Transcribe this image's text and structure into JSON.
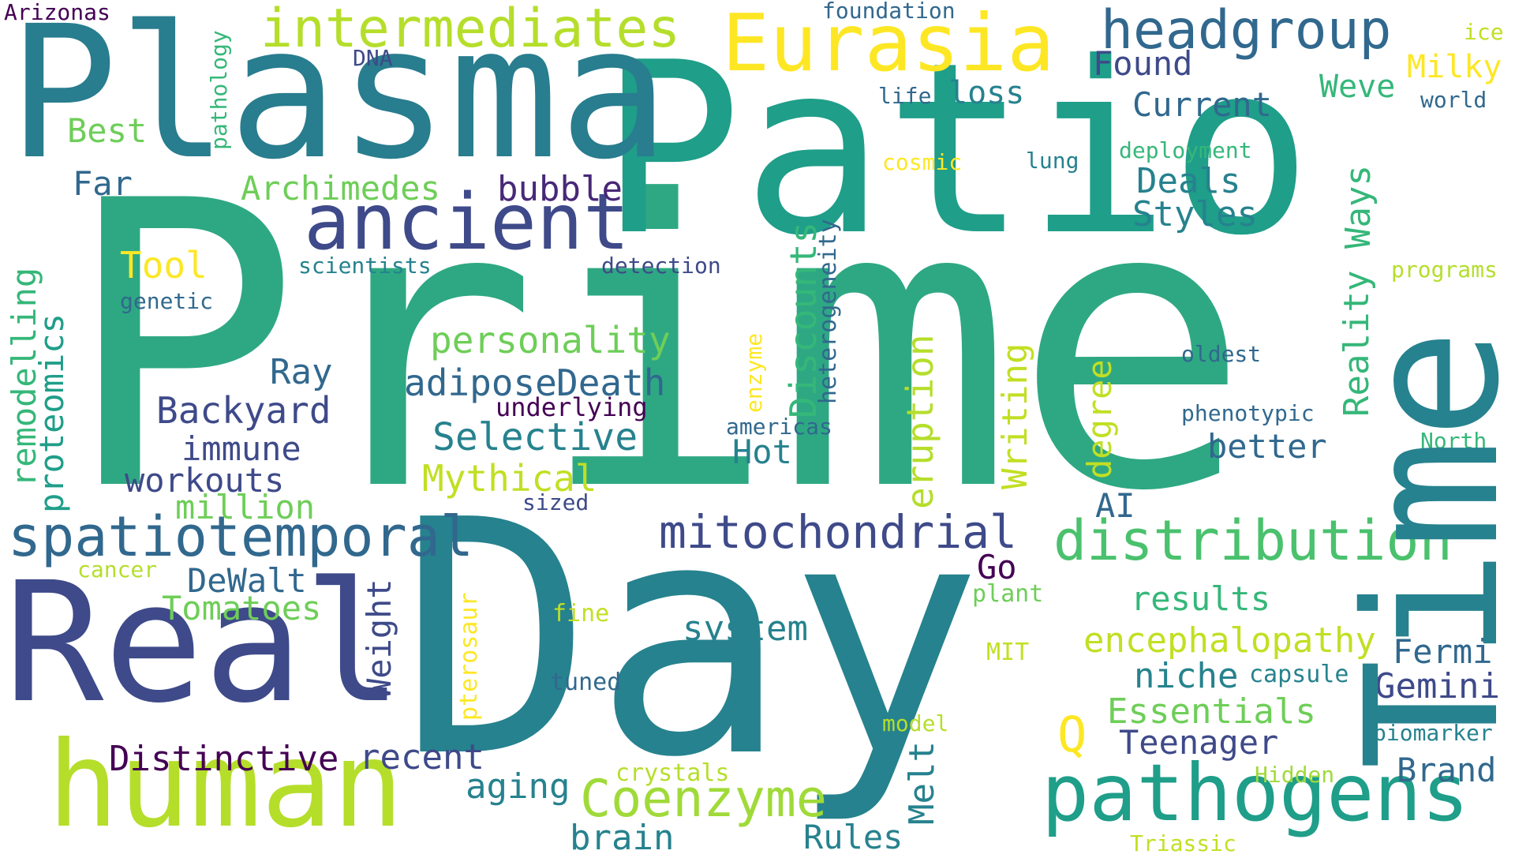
{
  "palette": {
    "dark_purple": "#440154",
    "indigo": "#3e4a89",
    "blue": "#31688e",
    "teal": "#26828e",
    "teal_green": "#1f9e89",
    "green": "#35b779",
    "light_green": "#6ece58",
    "yellow_green": "#b5de2b",
    "yellow": "#fde725"
  },
  "words": [
    {
      "text": "Prime",
      "color": "#2ea883",
      "orientation": "horizontal"
    },
    {
      "text": "Day",
      "color": "#26828e",
      "orientation": "horizontal"
    },
    {
      "text": "Patio",
      "color": "#1f9e89",
      "orientation": "horizontal"
    },
    {
      "text": "Plasma",
      "color": "#287d8e",
      "orientation": "horizontal"
    },
    {
      "text": "Real",
      "color": "#3e4a89",
      "orientation": "horizontal"
    },
    {
      "text": "Time",
      "color": "#26828e",
      "orientation": "vertical"
    },
    {
      "text": "human",
      "color": "#b5de2b",
      "orientation": "horizontal"
    },
    {
      "text": "Eurasia",
      "color": "#fde725",
      "orientation": "horizontal"
    },
    {
      "text": "ancient",
      "color": "#3e4a89",
      "orientation": "horizontal"
    },
    {
      "text": "pathogens",
      "color": "#1f9e89",
      "orientation": "horizontal"
    },
    {
      "text": "intermediates",
      "color": "#b5de2b",
      "orientation": "horizontal"
    },
    {
      "text": "headgroup",
      "color": "#31688e",
      "orientation": "horizontal"
    },
    {
      "text": "spatiotemporal",
      "color": "#31688e",
      "orientation": "horizontal"
    },
    {
      "text": "distribution",
      "color": "#4ac16d",
      "orientation": "horizontal"
    },
    {
      "text": "mitochondrial",
      "color": "#3e4a89",
      "orientation": "horizontal"
    },
    {
      "text": "Coenzyme",
      "color": "#a0da39",
      "orientation": "horizontal"
    },
    {
      "text": "bubble",
      "color": "#482878",
      "orientation": "horizontal"
    },
    {
      "text": "Archimedes",
      "color": "#6ece58",
      "orientation": "horizontal"
    },
    {
      "text": "personality",
      "color": "#6ece58",
      "orientation": "horizontal"
    },
    {
      "text": "adipose",
      "color": "#31688e",
      "orientation": "horizontal"
    },
    {
      "text": "Death",
      "color": "#31688e",
      "orientation": "horizontal"
    },
    {
      "text": "Selective",
      "color": "#26828e",
      "orientation": "horizontal"
    },
    {
      "text": "Mythical",
      "color": "#c2df23",
      "orientation": "horizontal"
    },
    {
      "text": "Backyard",
      "color": "#3e4a89",
      "orientation": "horizontal"
    },
    {
      "text": "immune",
      "color": "#3e4a89",
      "orientation": "horizontal"
    },
    {
      "text": "workouts",
      "color": "#3e4a89",
      "orientation": "horizontal"
    },
    {
      "text": "million",
      "color": "#6ece58",
      "orientation": "horizontal"
    },
    {
      "text": "Ray",
      "color": "#31688e",
      "orientation": "horizontal"
    },
    {
      "text": "Tool",
      "color": "#fde725",
      "orientation": "horizontal"
    },
    {
      "text": "Best",
      "color": "#6ece58",
      "orientation": "horizontal"
    },
    {
      "text": "Far",
      "color": "#31688e",
      "orientation": "horizontal"
    },
    {
      "text": "Found",
      "color": "#3e4a89",
      "orientation": "horizontal"
    },
    {
      "text": "loss",
      "color": "#26828e",
      "orientation": "horizontal"
    },
    {
      "text": "Current",
      "color": "#31688e",
      "orientation": "horizontal"
    },
    {
      "text": "Deals",
      "color": "#26828e",
      "orientation": "horizontal"
    },
    {
      "text": "Styles",
      "color": "#26828e",
      "orientation": "horizontal"
    },
    {
      "text": "Weve",
      "color": "#35b779",
      "orientation": "horizontal"
    },
    {
      "text": "Milky",
      "color": "#fde725",
      "orientation": "horizontal"
    },
    {
      "text": "ice",
      "color": "#c2df23",
      "orientation": "horizontal"
    },
    {
      "text": "world",
      "color": "#31688e",
      "orientation": "horizontal"
    },
    {
      "text": "life",
      "color": "#31688e",
      "orientation": "horizontal"
    },
    {
      "text": "DNA",
      "color": "#3e4a89",
      "orientation": "horizontal"
    },
    {
      "text": "foundation",
      "color": "#31688e",
      "orientation": "horizontal"
    },
    {
      "text": "Arizonas",
      "color": "#440154",
      "orientation": "horizontal"
    },
    {
      "text": "cosmic",
      "color": "#fde725",
      "orientation": "horizontal"
    },
    {
      "text": "lung",
      "color": "#26828e",
      "orientation": "horizontal"
    },
    {
      "text": "deployment",
      "color": "#35b779",
      "orientation": "horizontal"
    },
    {
      "text": "programs",
      "color": "#b5de2b",
      "orientation": "horizontal"
    },
    {
      "text": "scientists",
      "color": "#26828e",
      "orientation": "horizontal"
    },
    {
      "text": "detection",
      "color": "#3e4a89",
      "orientation": "horizontal"
    },
    {
      "text": "genetic",
      "color": "#31688e",
      "orientation": "horizontal"
    },
    {
      "text": "oldest",
      "color": "#31688e",
      "orientation": "horizontal"
    },
    {
      "text": "phenotypic",
      "color": "#31688e",
      "orientation": "horizontal"
    },
    {
      "text": "North",
      "color": "#35b779",
      "orientation": "horizontal"
    },
    {
      "text": "better",
      "color": "#31688e",
      "orientation": "horizontal"
    },
    {
      "text": "Hot",
      "color": "#26828e",
      "orientation": "horizontal"
    },
    {
      "text": "americas",
      "color": "#31688e",
      "orientation": "horizontal"
    },
    {
      "text": "underlying",
      "color": "#440154",
      "orientation": "horizontal"
    },
    {
      "text": "sized",
      "color": "#3e4a89",
      "orientation": "horizontal"
    },
    {
      "text": "AI",
      "color": "#31688e",
      "orientation": "horizontal"
    },
    {
      "text": "Go",
      "color": "#440154",
      "orientation": "horizontal"
    },
    {
      "text": "plant",
      "color": "#6ece58",
      "orientation": "horizontal"
    },
    {
      "text": "results",
      "color": "#35b779",
      "orientation": "horizontal"
    },
    {
      "text": "encephalopathy",
      "color": "#c2df23",
      "orientation": "horizontal"
    },
    {
      "text": "Fermi",
      "color": "#31688e",
      "orientation": "horizontal"
    },
    {
      "text": "niche",
      "color": "#26828e",
      "orientation": "horizontal"
    },
    {
      "text": "capsule",
      "color": "#26828e",
      "orientation": "horizontal"
    },
    {
      "text": "Gemini",
      "color": "#3e4a89",
      "orientation": "horizontal"
    },
    {
      "text": "Essentials",
      "color": "#6ece58",
      "orientation": "horizontal"
    },
    {
      "text": "biomarker",
      "color": "#26828e",
      "orientation": "horizontal"
    },
    {
      "text": "Teenager",
      "color": "#3e4a89",
      "orientation": "horizontal"
    },
    {
      "text": "Brand",
      "color": "#31688e",
      "orientation": "horizontal"
    },
    {
      "text": "Hidden",
      "color": "#a0da39",
      "orientation": "horizontal"
    },
    {
      "text": "Triassic",
      "color": "#c2df23",
      "orientation": "horizontal"
    },
    {
      "text": "Q",
      "color": "#fde725",
      "orientation": "horizontal"
    },
    {
      "text": "model",
      "color": "#b5de2b",
      "orientation": "horizontal"
    },
    {
      "text": "MIT",
      "color": "#c2df23",
      "orientation": "horizontal"
    },
    {
      "text": "Rules",
      "color": "#26828e",
      "orientation": "horizontal"
    },
    {
      "text": "crystals",
      "color": "#b5de2b",
      "orientation": "horizontal"
    },
    {
      "text": "fine",
      "color": "#c2df23",
      "orientation": "horizontal"
    },
    {
      "text": "tuned",
      "color": "#31688e",
      "orientation": "horizontal"
    },
    {
      "text": "system",
      "color": "#26828e",
      "orientation": "horizontal"
    },
    {
      "text": "aging",
      "color": "#26828e",
      "orientation": "horizontal"
    },
    {
      "text": "brain",
      "color": "#26828e",
      "orientation": "horizontal"
    },
    {
      "text": "recent",
      "color": "#3e4a89",
      "orientation": "horizontal"
    },
    {
      "text": "Distinctive",
      "color": "#440154",
      "orientation": "horizontal"
    },
    {
      "text": "Tomatoes",
      "color": "#6ece58",
      "orientation": "horizontal"
    },
    {
      "text": "DeWalt",
      "color": "#31688e",
      "orientation": "horizontal"
    },
    {
      "text": "cancer",
      "color": "#b5de2b",
      "orientation": "horizontal"
    },
    {
      "text": "pathology",
      "color": "#35b779",
      "orientation": "vertical"
    },
    {
      "text": "remodelling",
      "color": "#35b779",
      "orientation": "vertical"
    },
    {
      "text": "proteomics",
      "color": "#1f9e89",
      "orientation": "vertical"
    },
    {
      "text": "Weight",
      "color": "#3e4a89",
      "orientation": "vertical"
    },
    {
      "text": "pterosaur",
      "color": "#fde725",
      "orientation": "vertical"
    },
    {
      "text": "enzyme",
      "color": "#fde725",
      "orientation": "vertical"
    },
    {
      "text": "heterogeneity",
      "color": "#31688e",
      "orientation": "vertical"
    },
    {
      "text": "Discounts",
      "color": "#35b779",
      "orientation": "vertical"
    },
    {
      "text": "eruption",
      "color": "#b5de2b",
      "orientation": "vertical"
    },
    {
      "text": "Writing",
      "color": "#c2df23",
      "orientation": "vertical"
    },
    {
      "text": "degree",
      "color": "#c2df23",
      "orientation": "vertical"
    },
    {
      "text": "Melt",
      "color": "#26828e",
      "orientation": "vertical"
    },
    {
      "text": "Reality",
      "color": "#35b779",
      "orientation": "vertical"
    },
    {
      "text": "Ways",
      "color": "#35b779",
      "orientation": "vertical"
    }
  ]
}
